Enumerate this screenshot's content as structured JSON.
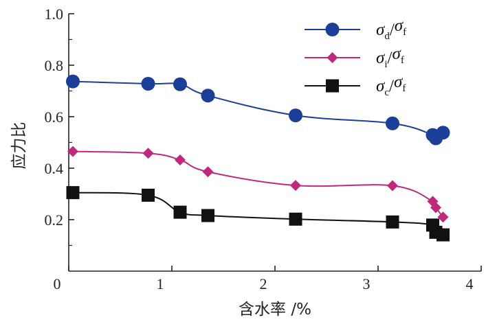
{
  "chart_data": {
    "type": "line",
    "xlabel": "含水率 /%",
    "ylabel": "应力比",
    "xlim": [
      0,
      4
    ],
    "ylim": [
      0,
      1.0
    ],
    "xticks": [
      "0",
      "1",
      "2",
      "3",
      "4"
    ],
    "yticks": [
      "0.2",
      "0.4",
      "0.6",
      "0.8",
      "1.0"
    ],
    "legend_position": "top-right",
    "series": [
      {
        "key": "sd",
        "name": "σd/σf",
        "legend": {
          "main1": "σ",
          "sub1": "d",
          "sep": "/",
          "main2": "σ",
          "sub2": "f"
        },
        "color": "#1b3f98",
        "marker": "circle",
        "x": [
          0.04,
          0.77,
          1.08,
          1.35,
          2.2,
          3.14,
          3.53,
          3.56,
          3.63
        ],
        "y": [
          0.737,
          0.728,
          0.726,
          0.682,
          0.605,
          0.574,
          0.529,
          0.516,
          0.538
        ]
      },
      {
        "key": "si",
        "name": "σi/σf",
        "legend": {
          "main1": "σ",
          "sub1": "i",
          "sep": "/",
          "main2": "σ",
          "sub2": "f"
        },
        "color": "#c0287e",
        "marker": "diamond",
        "x": [
          0.04,
          0.77,
          1.08,
          1.35,
          2.2,
          3.14,
          3.53,
          3.56,
          3.63
        ],
        "y": [
          0.465,
          0.458,
          0.432,
          0.386,
          0.333,
          0.332,
          0.271,
          0.247,
          0.21
        ]
      },
      {
        "key": "sc",
        "name": "σc/σf",
        "legend": {
          "main1": "σ",
          "sub1": "c",
          "sep": "/",
          "main2": "σ",
          "sub2": "f"
        },
        "color": "#111111",
        "marker": "square",
        "x": [
          0.04,
          0.77,
          1.08,
          1.35,
          2.2,
          3.14,
          3.53,
          3.56,
          3.63
        ],
        "y": [
          0.305,
          0.295,
          0.229,
          0.216,
          0.202,
          0.191,
          0.179,
          0.151,
          0.141
        ]
      }
    ]
  }
}
